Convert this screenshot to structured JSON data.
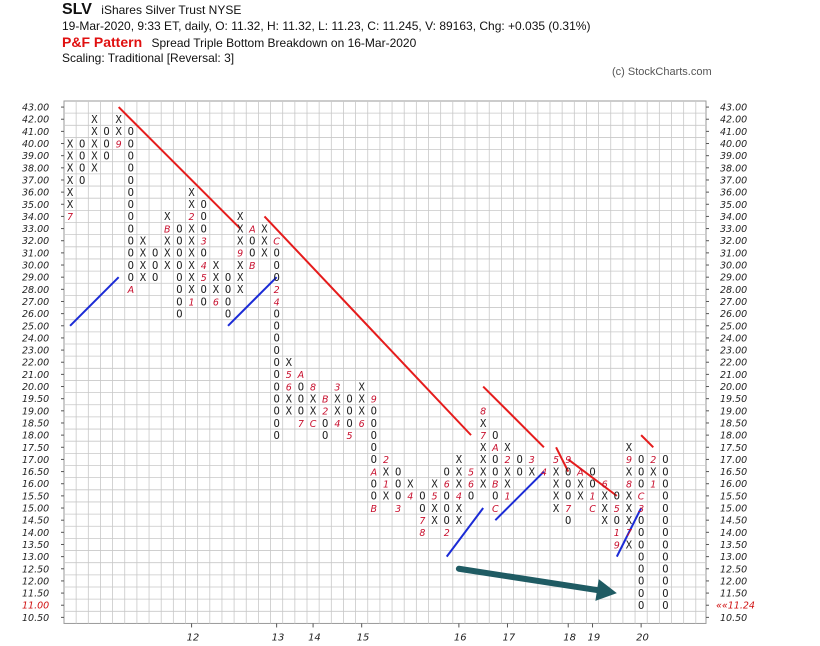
{
  "header": {
    "symbol": "SLV",
    "name": "iShares Silver Trust  NYSE",
    "quote": "19-Mar-2020, 9:33 ET, daily, O: 11.32, H: 11.32, L: 11.23, C: 11.245, V: 89163, Chg: +0.035 (0.31%)",
    "pattern_label": "P&F Pattern",
    "pattern_desc": "Spread Triple Bottom Breakdown on 16-Mar-2020",
    "scaling": "Scaling: Traditional [Reversal: 3]",
    "credit": "(c) StockCharts.com"
  },
  "chart_data": {
    "type": "point-and-figure",
    "price_levels": [
      "43.00",
      "42.00",
      "41.00",
      "40.00",
      "39.00",
      "38.00",
      "37.00",
      "36.00",
      "35.00",
      "34.00",
      "33.00",
      "32.00",
      "31.00",
      "30.00",
      "29.00",
      "28.00",
      "27.00",
      "26.00",
      "25.00",
      "24.00",
      "23.00",
      "22.00",
      "21.00",
      "20.00",
      "19.50",
      "19.00",
      "18.50",
      "18.00",
      "17.50",
      "17.00",
      "16.50",
      "16.00",
      "15.50",
      "15.00",
      "14.50",
      "14.00",
      "13.50",
      "13.00",
      "12.50",
      "12.00",
      "11.50",
      "11.00",
      "10.50"
    ],
    "x_labels": [
      {
        "col": 10,
        "label": "12"
      },
      {
        "col": 17,
        "label": "13"
      },
      {
        "col": 20,
        "label": "14"
      },
      {
        "col": 24,
        "label": "15"
      },
      {
        "col": 32,
        "label": "16"
      },
      {
        "col": 36,
        "label": "17"
      },
      {
        "col": 41,
        "label": "18"
      },
      {
        "col": 43,
        "label": "19"
      },
      {
        "col": 47,
        "label": "20"
      }
    ],
    "last_price_left": "11.00",
    "last_price_right": "11.24",
    "columns": [
      {
        "type": "X",
        "top": "40.00",
        "bottom": "34.00",
        "marks": [
          {
            "price": "41.00",
            "label": "8"
          },
          {
            "price": "34.00",
            "label": "7"
          }
        ]
      },
      {
        "type": "O",
        "top": "40.00",
        "bottom": "37.00"
      },
      {
        "type": "X",
        "top": "42.00",
        "bottom": "38.00"
      },
      {
        "type": "O",
        "top": "41.00",
        "bottom": "39.00"
      },
      {
        "type": "X",
        "top": "42.00",
        "bottom": "40.00",
        "marks": [
          {
            "price": "40.00",
            "label": "9"
          }
        ]
      },
      {
        "type": "O",
        "top": "41.00",
        "bottom": "28.00",
        "marks": [
          {
            "price": "28.00",
            "label": "A"
          }
        ]
      },
      {
        "type": "X",
        "top": "32.00",
        "bottom": "29.00"
      },
      {
        "type": "O",
        "top": "31.00",
        "bottom": "29.00"
      },
      {
        "type": "X",
        "top": "34.00",
        "bottom": "30.00",
        "marks": [
          {
            "price": "33.00",
            "label": "B"
          },
          {
            "price": "29.00",
            "label": "C"
          }
        ]
      },
      {
        "type": "O",
        "top": "33.00",
        "bottom": "26.00"
      },
      {
        "type": "X",
        "top": "36.00",
        "bottom": "27.00",
        "marks": [
          {
            "price": "34.00",
            "label": "2"
          },
          {
            "price": "27.00",
            "label": "1"
          }
        ]
      },
      {
        "type": "O",
        "top": "35.00",
        "bottom": "27.00",
        "marks": [
          {
            "price": "32.00",
            "label": "3"
          },
          {
            "price": "30.00",
            "label": "4"
          },
          {
            "price": "29.00",
            "label": "5"
          }
        ]
      },
      {
        "type": "X",
        "top": "30.00",
        "bottom": "27.00",
        "marks": [
          {
            "price": "27.00",
            "label": "6"
          }
        ]
      },
      {
        "type": "O",
        "top": "29.00",
        "bottom": "26.00"
      },
      {
        "type": "X",
        "top": "34.00",
        "bottom": "28.00",
        "marks": [
          {
            "price": "31.00",
            "label": "9"
          },
          {
            "price": "27.00",
            "label": "8"
          }
        ]
      },
      {
        "type": "O",
        "top": "33.00",
        "bottom": "30.00",
        "marks": [
          {
            "price": "33.00",
            "label": "A"
          },
          {
            "price": "30.00",
            "label": "B"
          }
        ]
      },
      {
        "type": "X",
        "top": "33.00",
        "bottom": "31.00"
      },
      {
        "type": "O",
        "top": "32.00",
        "bottom": "18.00",
        "marks": [
          {
            "price": "32.00",
            "label": "C"
          },
          {
            "price": "28.00",
            "label": "2"
          },
          {
            "price": "27.00",
            "label": "4"
          }
        ]
      },
      {
        "type": "X",
        "top": "22.00",
        "bottom": "19.00",
        "marks": [
          {
            "price": "21.00",
            "label": "5"
          },
          {
            "price": "20.00",
            "label": "6"
          }
        ]
      },
      {
        "type": "O",
        "top": "21.00",
        "bottom": "18.50",
        "marks": [
          {
            "price": "21.00",
            "label": "A"
          },
          {
            "price": "18.50",
            "label": "7"
          }
        ]
      },
      {
        "type": "X",
        "top": "20.00",
        "bottom": "18.50",
        "marks": [
          {
            "price": "20.00",
            "label": "8"
          },
          {
            "price": "18.50",
            "label": "C"
          }
        ]
      },
      {
        "type": "O",
        "top": "19.50",
        "bottom": "18.00",
        "marks": [
          {
            "price": "19.50",
            "label": "B"
          },
          {
            "price": "19.00",
            "label": "2"
          }
        ]
      },
      {
        "type": "X",
        "top": "20.00",
        "bottom": "18.50",
        "marks": [
          {
            "price": "20.00",
            "label": "3"
          },
          {
            "price": "18.50",
            "label": "4"
          }
        ]
      },
      {
        "type": "O",
        "top": "19.50",
        "bottom": "18.00",
        "marks": [
          {
            "price": "18.00",
            "label": "5"
          }
        ]
      },
      {
        "type": "X",
        "top": "20.00",
        "bottom": "18.50",
        "marks": [
          {
            "price": "18.50",
            "label": "6"
          }
        ]
      },
      {
        "type": "O",
        "top": "19.50",
        "bottom": "15.00",
        "marks": [
          {
            "price": "19.50",
            "label": "9"
          },
          {
            "price": "16.50",
            "label": "A"
          },
          {
            "price": "15.00",
            "label": "B"
          }
        ]
      },
      {
        "type": "X",
        "top": "17.00",
        "bottom": "15.50",
        "marks": [
          {
            "price": "17.00",
            "label": "2"
          },
          {
            "price": "16.00",
            "label": "1"
          }
        ]
      },
      {
        "type": "O",
        "top": "16.50",
        "bottom": "15.00",
        "marks": [
          {
            "price": "15.00",
            "label": "3"
          }
        ]
      },
      {
        "type": "X",
        "top": "16.00",
        "bottom": "15.50",
        "marks": [
          {
            "price": "15.50",
            "label": "4"
          }
        ]
      },
      {
        "type": "O",
        "top": "15.50",
        "bottom": "14.00",
        "marks": [
          {
            "price": "14.50",
            "label": "7"
          },
          {
            "price": "14.00",
            "label": "8"
          }
        ]
      },
      {
        "type": "X",
        "top": "16.00",
        "bottom": "14.50",
        "marks": [
          {
            "price": "15.50",
            "label": "5"
          },
          {
            "price": "14.00",
            "label": "A"
          }
        ]
      },
      {
        "type": "O",
        "top": "16.50",
        "bottom": "14.00",
        "marks": [
          {
            "price": "16.00",
            "label": "6"
          },
          {
            "price": "14.00",
            "label": "2"
          }
        ]
      },
      {
        "type": "X",
        "top": "17.00",
        "bottom": "14.50",
        "marks": [
          {
            "price": "15.50",
            "label": "4"
          }
        ]
      },
      {
        "type": "O",
        "top": "16.50",
        "bottom": "15.50",
        "marks": [
          {
            "price": "16.50",
            "label": "5"
          },
          {
            "price": "16.00",
            "label": "6"
          }
        ]
      },
      {
        "type": "X",
        "top": "19.00",
        "bottom": "16.00",
        "marks": [
          {
            "price": "19.00",
            "label": "8"
          },
          {
            "price": "18.00",
            "label": "7"
          }
        ]
      },
      {
        "type": "O",
        "top": "18.00",
        "bottom": "15.00",
        "marks": [
          {
            "price": "17.50",
            "label": "A"
          },
          {
            "price": "16.00",
            "label": "B"
          },
          {
            "price": "15.00",
            "label": "C"
          }
        ]
      },
      {
        "type": "X",
        "top": "17.50",
        "bottom": "15.50",
        "marks": [
          {
            "price": "17.00",
            "label": "2"
          },
          {
            "price": "15.50",
            "label": "1"
          }
        ]
      },
      {
        "type": "O",
        "top": "17.00",
        "bottom": "16.50"
      },
      {
        "type": "X",
        "top": "17.00",
        "bottom": "16.50",
        "marks": [
          {
            "price": "17.00",
            "label": "3"
          }
        ]
      },
      {
        "type": "O",
        "top": "16.50",
        "bottom": "16.50",
        "marks": [
          {
            "price": "16.50",
            "label": "4"
          }
        ]
      },
      {
        "type": "X",
        "top": "17.00",
        "bottom": "15.00",
        "marks": [
          {
            "price": "17.00",
            "label": "5"
          }
        ]
      },
      {
        "type": "O",
        "top": "17.00",
        "bottom": "14.50",
        "marks": [
          {
            "price": "17.00",
            "label": "9"
          },
          {
            "price": "15.00",
            "label": "7"
          }
        ]
      },
      {
        "type": "X",
        "top": "16.50",
        "bottom": "15.50",
        "marks": [
          {
            "price": "16.50",
            "label": "A"
          },
          {
            "price": "15.00",
            "label": "8"
          }
        ]
      },
      {
        "type": "O",
        "top": "16.50",
        "bottom": "15.00",
        "marks": [
          {
            "price": "15.50",
            "label": "1"
          },
          {
            "price": "15.00",
            "label": "C"
          }
        ]
      },
      {
        "type": "X",
        "top": "16.00",
        "bottom": "14.50",
        "marks": [
          {
            "price": "16.00",
            "label": "6"
          },
          {
            "price": "14.00",
            "label": "7"
          },
          {
            "price": "13.50",
            "label": "8"
          }
        ]
      },
      {
        "type": "O",
        "top": "15.50",
        "bottom": "13.50",
        "marks": [
          {
            "price": "13.50",
            "label": "9"
          },
          {
            "price": "15.00",
            "label": "5"
          },
          {
            "price": "14.00",
            "label": "1"
          }
        ]
      },
      {
        "type": "X",
        "top": "17.50",
        "bottom": "13.50",
        "marks": [
          {
            "price": "17.00",
            "label": "9"
          },
          {
            "price": "16.00",
            "label": "8"
          },
          {
            "price": "14.00",
            "label": "7"
          }
        ]
      },
      {
        "type": "O",
        "top": "17.00",
        "bottom": "11.00",
        "marks": [
          {
            "price": "15.50",
            "label": "C"
          },
          {
            "price": "15.00",
            "label": "3"
          }
        ]
      },
      {
        "type": "X",
        "top": "17.00",
        "bottom": "16.00",
        "marks": [
          {
            "price": "17.00",
            "label": "2"
          },
          {
            "price": "16.00",
            "label": "1"
          }
        ]
      },
      {
        "type": "O",
        "top": "17.00",
        "bottom": "11.00"
      }
    ],
    "red_lines": [
      {
        "from": {
          "col": 4,
          "price": "43.00"
        },
        "to": {
          "col": 14,
          "price": "33.00"
        }
      },
      {
        "from": {
          "col": 16,
          "price": "34.00"
        },
        "to": {
          "col": 33,
          "price": "18.00"
        }
      },
      {
        "from": {
          "col": 34,
          "price": "20.00"
        },
        "to": {
          "col": 39,
          "price": "17.50"
        }
      },
      {
        "from": {
          "col": 40,
          "price": "17.50"
        },
        "to": {
          "col": 41,
          "price": "16.50"
        }
      },
      {
        "from": {
          "col": 41,
          "price": "17.00"
        },
        "to": {
          "col": 45,
          "price": "15.50"
        }
      },
      {
        "from": {
          "col": 47,
          "price": "18.00"
        },
        "to": {
          "col": 48,
          "price": "17.50"
        }
      }
    ],
    "blue_lines": [
      {
        "from": {
          "col": 0,
          "price": "25.00"
        },
        "to": {
          "col": 4,
          "price": "29.00"
        }
      },
      {
        "from": {
          "col": 13,
          "price": "25.00"
        },
        "to": {
          "col": 17,
          "price": "29.00"
        }
      },
      {
        "from": {
          "col": 31,
          "price": "13.00"
        },
        "to": {
          "col": 34,
          "price": "15.00"
        }
      },
      {
        "from": {
          "col": 35,
          "price": "14.50"
        },
        "to": {
          "col": 39,
          "price": "16.50"
        }
      },
      {
        "from": {
          "col": 45,
          "price": "13.00"
        },
        "to": {
          "col": 47,
          "price": "15.00"
        }
      }
    ],
    "arrow": {
      "color": "#1f5b63",
      "from": {
        "col": 32,
        "price": "12.50"
      },
      "to": {
        "col": 45,
        "price": "11.50"
      }
    },
    "colors": {
      "line_down": "#e51c1c",
      "line_up": "#1b2bd6",
      "month_marker": "#c8102e",
      "grid": "#c8c8c8"
    }
  }
}
